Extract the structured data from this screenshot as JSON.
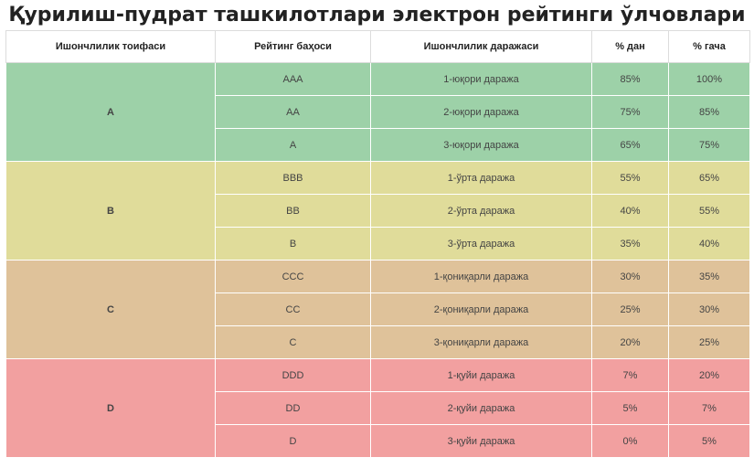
{
  "title": "Қурилиш-пудрат ташкилотлари электрон рейтинги ўлчовлари",
  "columns": [
    "Ишончлилик тоифаси",
    "Рейтинг баҳоси",
    "Ишончлилик даражаси",
    "% дан",
    "% гача"
  ],
  "colors": {
    "A": "#9dd1a8",
    "B": "#e0dc9a",
    "C": "#dfc29a",
    "D": "#f2a0a0"
  },
  "categories": [
    {
      "name": "A",
      "rows": [
        {
          "grade": "AAA",
          "level": "1-юқори даража",
          "from": "85%",
          "to": "100%"
        },
        {
          "grade": "AA",
          "level": "2-юқори даража",
          "from": "75%",
          "to": "85%"
        },
        {
          "grade": "A",
          "level": "3-юқори даража",
          "from": "65%",
          "to": "75%"
        }
      ]
    },
    {
      "name": "B",
      "rows": [
        {
          "grade": "BBB",
          "level": "1-ўрта даража",
          "from": "55%",
          "to": "65%"
        },
        {
          "grade": "BB",
          "level": "2-ўрта даража",
          "from": "40%",
          "to": "55%"
        },
        {
          "grade": "B",
          "level": "3-ўрта даража",
          "from": "35%",
          "to": "40%"
        }
      ]
    },
    {
      "name": "C",
      "rows": [
        {
          "grade": "CCC",
          "level": "1-қониқарли даража",
          "from": "30%",
          "to": "35%"
        },
        {
          "grade": "CC",
          "level": "2-қониқарли даража",
          "from": "25%",
          "to": "30%"
        },
        {
          "grade": "C",
          "level": "3-қониқарли даража",
          "from": "20%",
          "to": "25%"
        }
      ]
    },
    {
      "name": "D",
      "rows": [
        {
          "grade": "DDD",
          "level": "1-қуйи даража",
          "from": "7%",
          "to": "20%"
        },
        {
          "grade": "DD",
          "level": "2-қуйи даража",
          "from": "5%",
          "to": "7%"
        },
        {
          "grade": "D",
          "level": "3-қуйи даража",
          "from": "0%",
          "to": "5%"
        }
      ]
    }
  ]
}
